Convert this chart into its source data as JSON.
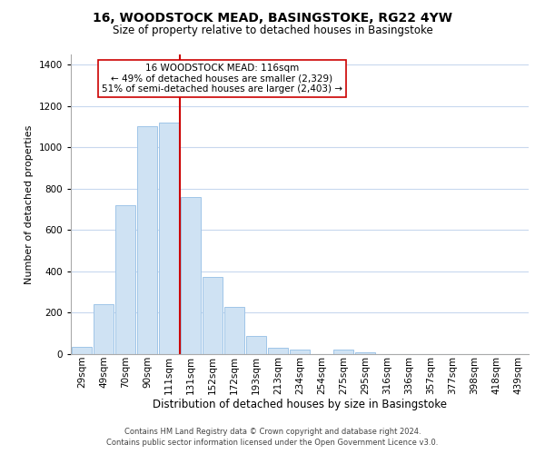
{
  "title": "16, WOODSTOCK MEAD, BASINGSTOKE, RG22 4YW",
  "subtitle": "Size of property relative to detached houses in Basingstoke",
  "xlabel": "Distribution of detached houses by size in Basingstoke",
  "ylabel": "Number of detached properties",
  "bar_labels": [
    "29sqm",
    "49sqm",
    "70sqm",
    "90sqm",
    "111sqm",
    "131sqm",
    "152sqm",
    "172sqm",
    "193sqm",
    "213sqm",
    "234sqm",
    "254sqm",
    "275sqm",
    "295sqm",
    "316sqm",
    "336sqm",
    "357sqm",
    "377sqm",
    "398sqm",
    "418sqm",
    "439sqm"
  ],
  "bar_values": [
    35,
    240,
    720,
    1105,
    1120,
    760,
    375,
    230,
    90,
    30,
    20,
    0,
    20,
    10,
    0,
    0,
    0,
    0,
    0,
    0,
    0
  ],
  "bar_color": "#cfe2f3",
  "bar_edge_color": "#9fc5e8",
  "vline_color": "#cc0000",
  "ylim": [
    0,
    1450
  ],
  "yticks": [
    0,
    200,
    400,
    600,
    800,
    1000,
    1200,
    1400
  ],
  "annotation_line1": "16 WOODSTOCK MEAD: 116sqm",
  "annotation_line2": "← 49% of detached houses are smaller (2,329)",
  "annotation_line3": "51% of semi-detached houses are larger (2,403) →",
  "annotation_box_color": "#ffffff",
  "annotation_box_edge": "#cc0000",
  "footer_line1": "Contains HM Land Registry data © Crown copyright and database right 2024.",
  "footer_line2": "Contains public sector information licensed under the Open Government Licence v3.0.",
  "background_color": "#ffffff",
  "grid_color": "#c8d8ee",
  "title_fontsize": 10,
  "subtitle_fontsize": 8.5,
  "ylabel_fontsize": 8,
  "xlabel_fontsize": 8.5,
  "tick_fontsize": 7.5,
  "annotation_fontsize": 7.5,
  "footer_fontsize": 6
}
